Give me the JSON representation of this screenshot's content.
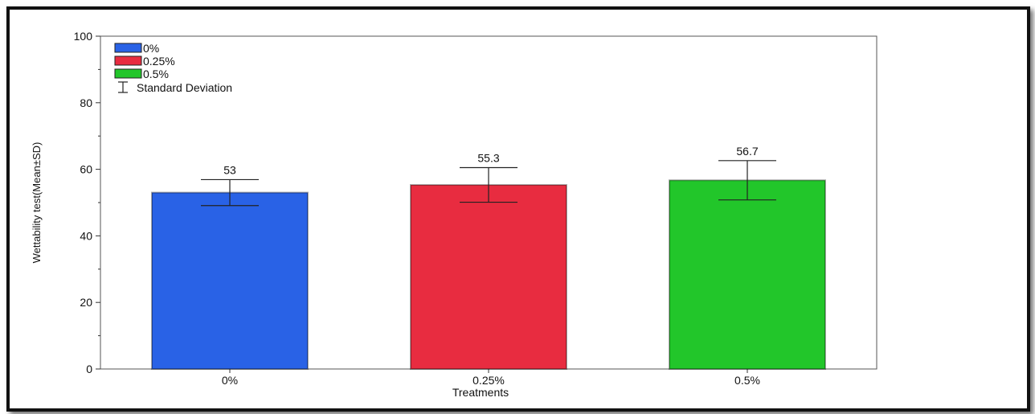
{
  "chart_data": {
    "type": "bar",
    "title": "",
    "xlabel": "Treatments",
    "ylabel": "Wettability test(Mean±SD)",
    "ylim": [
      0,
      100
    ],
    "yticks": [
      0,
      20,
      40,
      60,
      80,
      100
    ],
    "categories": [
      "0%",
      "0.25%",
      "0.5%"
    ],
    "values": [
      53,
      55.3,
      56.7
    ],
    "value_labels": [
      "53",
      "55.3",
      "56.7"
    ],
    "sd": [
      3.9,
      5.2,
      5.9
    ],
    "colors": [
      "#2962e6",
      "#e82c40",
      "#22c62a"
    ],
    "legend": {
      "placement": "top-left",
      "entries": [
        "0%",
        "0.25%",
        "0.5%"
      ],
      "error_bar_label": "Standard Deviation"
    },
    "grid": false
  }
}
